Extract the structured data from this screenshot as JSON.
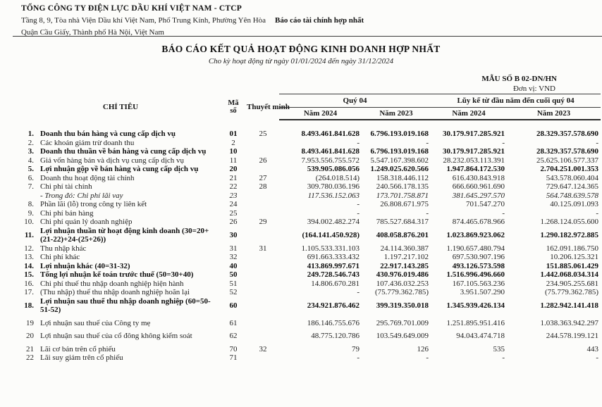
{
  "header": {
    "company": "TỔNG CÔNG TY ĐIỆN LỰC DẦU KHÍ VIỆT NAM - CTCP",
    "address_line1": "Tầng 8, 9, Tòa nhà Viện Dầu khí Việt Nam, Phố Trung Kính, Phường Yên Hòa",
    "address_line2": "Quận Cầu Giấy, Thành phố Hà Nội, Việt Nam",
    "report_type": "Báo cáo tài chính hợp nhất",
    "title": "BÁO CÁO KẾT QUẢ HOẠT ĐỘNG KINH DOANH HỢP NHẤT",
    "subtitle": "Cho kỳ hoạt động từ ngày 01/01/2024 đến ngày 31/12/2024",
    "form_no": "MẪU SỐ B 02-DN/HN",
    "unit": "Đơn vị: VND"
  },
  "table": {
    "col_headers": {
      "item": "CHỈ TIÊU",
      "code_line1": "Mã",
      "code_line2": "số",
      "note": "Thuyết minh",
      "group_quarter": "Quý 04",
      "group_ytd": "Lũy kế từ đầu năm đến cuối quý 04",
      "q_2024": "Năm 2024",
      "q_2023": "Năm 2023",
      "y_2024": "Năm 2024",
      "y_2023": "Năm 2023"
    },
    "rows": [
      {
        "num": "1.",
        "label": "Doanh thu bán hàng và cung cấp dịch vụ",
        "code": "01",
        "note": "25",
        "style": "bold",
        "v": [
          "8.493.461.841.628",
          "6.796.193.019.168",
          "30.179.917.285.921",
          "28.329.357.578.690"
        ]
      },
      {
        "num": "2.",
        "label": "Các khoản giảm trừ doanh thu",
        "code": "2",
        "note": "",
        "style": "normal",
        "v": [
          "-",
          "-",
          "-",
          "-"
        ]
      },
      {
        "num": "3.",
        "label": "Doanh thu thuần về bán hàng và cung cấp dịch vụ",
        "code": "10",
        "note": "",
        "style": "bold",
        "v": [
          "8.493.461.841.628",
          "6.796.193.019.168",
          "30.179.917.285.921",
          "28.329.357.578.690"
        ]
      },
      {
        "num": "4.",
        "label": "Giá vốn hàng bán và dịch vụ cung cấp dịch vụ",
        "code": "11",
        "note": "26",
        "style": "normal",
        "v": [
          "7.953.556.755.572",
          "5.547.167.398.602",
          "28.232.053.113.391",
          "25.625.106.577.337"
        ]
      },
      {
        "num": "5.",
        "label": "Lợi nhuận gộp về bán hàng và cung cấp dịch vụ",
        "code": "20",
        "note": "",
        "style": "bold",
        "v": [
          "539.905.086.056",
          "1.249.025.620.566",
          "1.947.864.172.530",
          "2.704.251.001.353"
        ]
      },
      {
        "num": "6.",
        "label": "Doanh thu hoạt động tài chính",
        "code": "21",
        "note": "27",
        "style": "normal",
        "v": [
          "(264.018.514)",
          "158.318.446.112",
          "616.430.843.918",
          "543.578.060.404"
        ]
      },
      {
        "num": "7.",
        "label": "Chi phí tài chính",
        "code": "22",
        "note": "28",
        "style": "normal",
        "v": [
          "309.780.036.196",
          "240.566.178.135",
          "666.660.961.690",
          "729.647.124.365"
        ]
      },
      {
        "num": "",
        "label": "- Trong đó: Chi phí lãi vay",
        "code": "23",
        "note": "",
        "style": "italic",
        "v": [
          "117.536.152.063",
          "173.701.758.871",
          "381.645.297.570",
          "564.748.639.578"
        ]
      },
      {
        "num": "8.",
        "label": "Phần lãi (lỗ) trong công ty liên kết",
        "code": "24",
        "note": "",
        "style": "normal",
        "v": [
          "-",
          "26.808.671.975",
          "701.547.270",
          "40.125.091.093"
        ]
      },
      {
        "num": "9.",
        "label": "Chi phí bán hàng",
        "code": "25",
        "note": "",
        "style": "normal",
        "v": [
          "-",
          "-",
          "-",
          "-"
        ]
      },
      {
        "num": "10.",
        "label": "Chi phí quản lý doanh nghiệp",
        "code": "26",
        "note": "29",
        "style": "normal",
        "v": [
          "394.002.482.274",
          "785.527.684.317",
          "874.465.678.966",
          "1.268.124.055.600"
        ]
      },
      {
        "num": "11.",
        "label": "Lợi nhuận thuần từ hoạt động kinh doanh (30=20+(21-22)+24-(25+26))",
        "code": "30",
        "note": "",
        "style": "bold",
        "v": [
          "(164.141.450.928)",
          "408.058.876.201",
          "1.023.869.923.062",
          "1.290.182.972.885"
        ]
      },
      {
        "num": "12.",
        "label": "Thu nhập khác",
        "code": "31",
        "note": "31",
        "style": "normal",
        "v": [
          "1.105.533.331.103",
          "24.114.360.387",
          "1.190.657.480.794",
          "162.091.186.750"
        ]
      },
      {
        "num": "13.",
        "label": "Chi phí khác",
        "code": "32",
        "note": "",
        "style": "normal",
        "v": [
          "691.663.333.432",
          "1.197.217.102",
          "697.530.907.196",
          "10.206.125.321"
        ]
      },
      {
        "num": "14.",
        "label": "Lợi nhuận khác (40=31-32)",
        "code": "40",
        "note": "",
        "style": "bold",
        "v": [
          "413.869.997.671",
          "22.917.143.285",
          "493.126.573.598",
          "151.885.061.429"
        ]
      },
      {
        "num": "15.",
        "label": "Tổng lợi nhuận kế toán trước thuế (50=30+40)",
        "code": "50",
        "note": "",
        "style": "bold",
        "v": [
          "249.728.546.743",
          "430.976.019.486",
          "1.516.996.496.660",
          "1.442.068.034.314"
        ]
      },
      {
        "num": "16.",
        "label": "Chi phí thuế thu nhập doanh nghiệp hiện hành",
        "code": "51",
        "note": "",
        "style": "normal",
        "v": [
          "14.806.670.281",
          "107.436.032.253",
          "167.105.563.236",
          "234.905.255.681"
        ]
      },
      {
        "num": "17.",
        "label": "(Thu nhập) thuế thu nhập doanh nghiệp hoãn lại",
        "code": "52",
        "note": "",
        "style": "normal",
        "v": [
          "-",
          "(75.779.362.785)",
          "3.951.507.290",
          "(75.779.362.785)"
        ]
      },
      {
        "num": "18.",
        "label": "Lợi nhuận sau thuế thu nhập doanh nghiệp (60=50-51-52)",
        "code": "60",
        "note": "",
        "style": "bold",
        "v": [
          "234.921.876.462",
          "399.319.350.018",
          "1.345.939.426.134",
          "1.282.942.141.418"
        ]
      },
      {
        "num": "19",
        "label": "Lợi nhuận sau thuế của Công ty mẹ",
        "code": "61",
        "note": "",
        "style": "normal",
        "sp": true,
        "v": [
          "186.146.755.676",
          "295.769.701.009",
          "1.251.895.951.416",
          "1.038.363.942.297"
        ]
      },
      {
        "num": "20",
        "label": "Lợi nhuận sau thuế của cổ đông không kiểm soát",
        "code": "62",
        "note": "",
        "style": "normal",
        "sp": true,
        "v": [
          "48.775.120.786",
          "103.549.649.009",
          "94.043.474.718",
          "244.578.199.121"
        ]
      },
      {
        "num": "21",
        "label": "Lãi cơ bản trên cổ phiếu",
        "code": "70",
        "note": "32",
        "style": "normal",
        "sp": true,
        "v": [
          "79",
          "126",
          "535",
          "443"
        ]
      },
      {
        "num": "22",
        "label": "Lãi suy giảm trên cổ phiếu",
        "code": "71",
        "note": "",
        "style": "normal",
        "v": [
          "-",
          "-",
          "-",
          "-"
        ]
      }
    ]
  }
}
